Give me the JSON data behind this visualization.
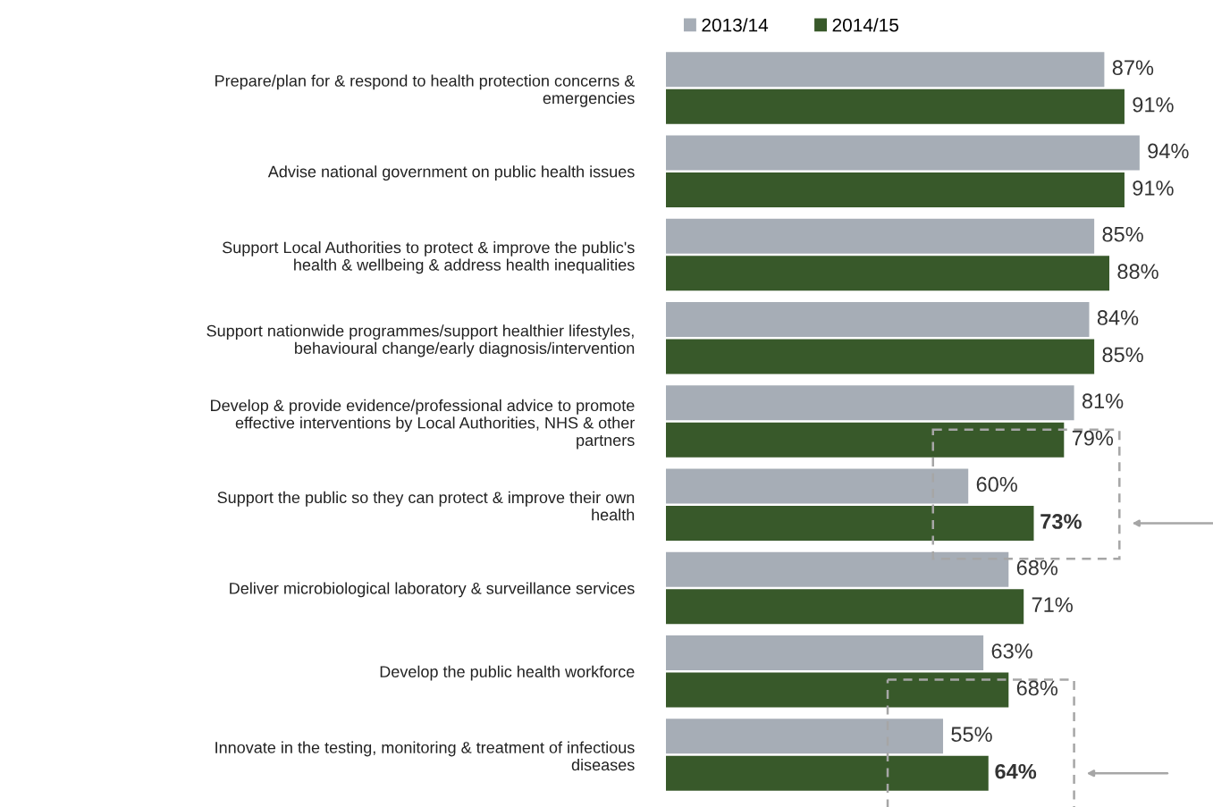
{
  "chart_data": {
    "type": "bar",
    "orientation": "horizontal",
    "categories": [
      "Prepare/plan for & respond to health protection concerns &\nemergencies",
      "Advise national government on public health issues",
      "Support Local Authorities to protect & improve the public's\nhealth & wellbeing & address health inequalities",
      "Support nationwide programmes/support healthier lifestyles,\nbehavioural change/early diagnosis/intervention",
      "Develop & provide evidence/professional advice to promote\neffective interventions by Local Authorities, NHS & other\npartners",
      "Support the public so they can protect & improve their own\nhealth",
      "Deliver microbiological laboratory & surveillance services",
      "Develop the public health workforce",
      "Innovate in the testing, monitoring & treatment of infectious\ndiseases"
    ],
    "series": [
      {
        "name": "2013/14",
        "color": "#a6adb6",
        "values": [
          87,
          94,
          85,
          84,
          81,
          60,
          68,
          63,
          55
        ],
        "value_labels": [
          "87%",
          "94%",
          "85%",
          "84%",
          "81%",
          "60%",
          "68%",
          "63%",
          "55%"
        ]
      },
      {
        "name": "2014/15",
        "color": "#38592a",
        "values": [
          91,
          91,
          88,
          85,
          79,
          73,
          71,
          68,
          64
        ],
        "value_labels": [
          "91%",
          "91%",
          "88%",
          "85%",
          "79%",
          null,
          "71%",
          "68%",
          null
        ]
      }
    ],
    "annotations": [
      {
        "text": "73%",
        "x": 73,
        "y": "Support the public so they can protect & improve their own\nhealth"
      },
      {
        "text": "64%",
        "x": 64,
        "y": "Innovate in the testing, monitoring & treatment of infectious\ndiseases"
      }
    ],
    "legend": "top",
    "grid": false,
    "tick_labels": "y"
  }
}
